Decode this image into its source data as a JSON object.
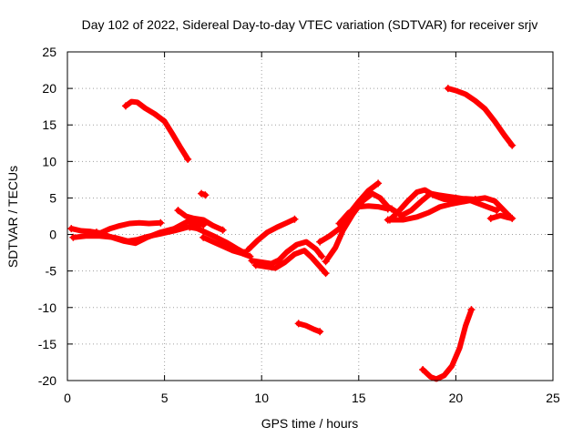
{
  "chart_data": {
    "type": "scatter",
    "title": "Day 102 of 2022, Sidereal Day-to-day VTEC variation (SDTVAR) for receiver srjv",
    "xlabel": "GPS time / hours",
    "ylabel": "SDTVAR / TECUs",
    "xlim": [
      0,
      25
    ],
    "ylim": [
      -20,
      25
    ],
    "xticks": [
      0,
      5,
      10,
      15,
      20,
      25
    ],
    "yticks": [
      -20,
      -15,
      -10,
      -5,
      0,
      5,
      10,
      15,
      20,
      25
    ],
    "grid": true,
    "marker": "+",
    "color": "#ff0000",
    "series": [
      {
        "name": "arc-1",
        "points": [
          [
            3.0,
            17.6
          ],
          [
            3.3,
            18.2
          ],
          [
            3.6,
            18.1
          ],
          [
            4.0,
            17.3
          ],
          [
            4.5,
            16.5
          ],
          [
            5.0,
            15.5
          ],
          [
            5.4,
            13.8
          ],
          [
            5.8,
            12.0
          ],
          [
            6.2,
            10.3
          ]
        ]
      },
      {
        "name": "arc-2",
        "points": [
          [
            19.6,
            20.0
          ],
          [
            20.0,
            19.7
          ],
          [
            20.5,
            19.2
          ],
          [
            21.0,
            18.3
          ],
          [
            21.5,
            17.2
          ],
          [
            22.0,
            15.5
          ],
          [
            22.5,
            13.6
          ],
          [
            22.9,
            12.2
          ]
        ]
      },
      {
        "name": "arc-3",
        "points": [
          [
            18.3,
            -18.5
          ],
          [
            18.7,
            -19.5
          ],
          [
            19.0,
            -19.8
          ],
          [
            19.4,
            -19.3
          ],
          [
            19.8,
            -18.0
          ],
          [
            20.2,
            -15.5
          ],
          [
            20.5,
            -12.5
          ],
          [
            20.8,
            -10.3
          ]
        ]
      },
      {
        "name": "arc-4",
        "points": [
          [
            11.9,
            -12.2
          ],
          [
            12.3,
            -12.5
          ],
          [
            12.7,
            -13.0
          ],
          [
            13.0,
            -13.3
          ]
        ]
      },
      {
        "name": "arc-5",
        "points": [
          [
            6.9,
            5.6
          ],
          [
            7.1,
            5.4
          ]
        ]
      },
      {
        "name": "arc-6",
        "points": [
          [
            0.2,
            0.8
          ],
          [
            0.7,
            0.5
          ],
          [
            1.2,
            0.4
          ],
          [
            1.7,
            0.2
          ],
          [
            2.2,
            0.8
          ],
          [
            2.7,
            1.2
          ],
          [
            3.2,
            1.5
          ],
          [
            3.7,
            1.6
          ],
          [
            4.2,
            1.5
          ],
          [
            4.8,
            1.6
          ]
        ]
      },
      {
        "name": "arc-7",
        "points": [
          [
            0.3,
            -0.4
          ],
          [
            1.0,
            -0.2
          ],
          [
            1.6,
            -0.2
          ],
          [
            2.4,
            -0.4
          ],
          [
            3.1,
            -0.9
          ],
          [
            3.6,
            -0.7
          ],
          [
            4.1,
            -0.3
          ],
          [
            4.8,
            0.1
          ],
          [
            5.5,
            0.5
          ],
          [
            6.2,
            1.0
          ],
          [
            6.8,
            1.4
          ]
        ]
      },
      {
        "name": "arc-8",
        "points": [
          [
            1.5,
            0.3
          ],
          [
            2.2,
            -0.3
          ],
          [
            2.9,
            -0.9
          ],
          [
            3.5,
            -1.2
          ],
          [
            4.1,
            -0.4
          ],
          [
            4.8,
            0.3
          ],
          [
            5.5,
            0.8
          ],
          [
            6.2,
            1.8
          ],
          [
            7.0,
            1.3
          ]
        ]
      },
      {
        "name": "arc-9",
        "points": [
          [
            5.7,
            3.3
          ],
          [
            6.1,
            2.5
          ],
          [
            6.5,
            2.2
          ],
          [
            7.0,
            2.0
          ],
          [
            7.5,
            1.2
          ],
          [
            8.0,
            0.6
          ]
        ]
      },
      {
        "name": "arc-10",
        "points": [
          [
            7.0,
            -0.4
          ],
          [
            7.5,
            -1.0
          ],
          [
            8.0,
            -1.6
          ],
          [
            8.5,
            -2.2
          ],
          [
            9.0,
            -2.6
          ],
          [
            9.4,
            -3.0
          ]
        ]
      },
      {
        "name": "arc-11",
        "points": [
          [
            6.3,
            1.0
          ],
          [
            6.7,
            0.8
          ],
          [
            7.1,
            0.3
          ],
          [
            7.6,
            -0.3
          ],
          [
            8.2,
            -1.1
          ],
          [
            8.7,
            -1.9
          ],
          [
            9.1,
            -2.5
          ]
        ]
      },
      {
        "name": "arc-12",
        "points": [
          [
            9.3,
            -2.1
          ],
          [
            9.8,
            -0.8
          ],
          [
            10.3,
            0.3
          ],
          [
            10.8,
            1.0
          ],
          [
            11.3,
            1.6
          ],
          [
            11.7,
            2.1
          ]
        ]
      },
      {
        "name": "arc-13",
        "points": [
          [
            9.5,
            -3.6
          ],
          [
            10.0,
            -3.8
          ],
          [
            10.5,
            -4.0
          ],
          [
            10.9,
            -3.5
          ],
          [
            11.3,
            -2.4
          ],
          [
            11.8,
            -1.4
          ],
          [
            12.3,
            -1.0
          ],
          [
            12.8,
            -2.0
          ],
          [
            13.1,
            -3.0
          ]
        ]
      },
      {
        "name": "arc-14",
        "points": [
          [
            9.7,
            -4.2
          ],
          [
            10.2,
            -4.4
          ],
          [
            10.7,
            -4.6
          ],
          [
            11.2,
            -3.8
          ],
          [
            11.7,
            -2.7
          ],
          [
            12.2,
            -2.2
          ],
          [
            12.6,
            -3.2
          ],
          [
            13.0,
            -4.4
          ],
          [
            13.3,
            -5.3
          ]
        ]
      },
      {
        "name": "arc-15",
        "points": [
          [
            13.0,
            -1.0
          ],
          [
            13.5,
            -0.2
          ],
          [
            14.0,
            0.8
          ],
          [
            14.5,
            2.8
          ],
          [
            15.0,
            4.5
          ],
          [
            15.5,
            6.0
          ],
          [
            16.0,
            7.0
          ]
        ]
      },
      {
        "name": "arc-16",
        "points": [
          [
            13.3,
            -3.7
          ],
          [
            13.8,
            -1.8
          ],
          [
            14.2,
            0.6
          ],
          [
            14.7,
            2.8
          ],
          [
            15.2,
            4.6
          ],
          [
            15.7,
            5.6
          ],
          [
            16.1,
            5.0
          ],
          [
            16.5,
            3.8
          ],
          [
            17.0,
            3.0
          ]
        ]
      },
      {
        "name": "arc-17",
        "points": [
          [
            14.0,
            1.5
          ],
          [
            14.5,
            3.0
          ],
          [
            15.0,
            3.8
          ],
          [
            15.5,
            3.9
          ],
          [
            16.0,
            3.8
          ],
          [
            16.5,
            3.5
          ]
        ]
      },
      {
        "name": "arc-18",
        "points": [
          [
            16.6,
            2.0
          ],
          [
            17.0,
            3.0
          ],
          [
            17.5,
            4.5
          ],
          [
            18.0,
            5.8
          ],
          [
            18.4,
            6.1
          ],
          [
            18.9,
            5.3
          ],
          [
            19.4,
            4.8
          ],
          [
            20.0,
            4.8
          ],
          [
            20.5,
            4.9
          ],
          [
            21.0,
            4.8
          ]
        ]
      },
      {
        "name": "arc-19",
        "points": [
          [
            16.7,
            3.5
          ],
          [
            17.2,
            2.6
          ],
          [
            17.7,
            3.3
          ],
          [
            18.2,
            4.5
          ],
          [
            18.7,
            5.6
          ],
          [
            19.1,
            5.4
          ],
          [
            19.6,
            5.2
          ],
          [
            20.1,
            5.0
          ],
          [
            20.6,
            4.8
          ],
          [
            21.1,
            4.3
          ],
          [
            21.6,
            3.8
          ],
          [
            22.1,
            3.3
          ]
        ]
      },
      {
        "name": "arc-20",
        "points": [
          [
            16.5,
            2.0
          ],
          [
            17.3,
            2.0
          ],
          [
            18.0,
            2.4
          ],
          [
            18.6,
            3.0
          ],
          [
            19.2,
            3.8
          ],
          [
            19.8,
            4.2
          ],
          [
            20.4,
            4.5
          ],
          [
            21.0,
            4.8
          ],
          [
            21.5,
            5.0
          ],
          [
            22.0,
            4.6
          ],
          [
            22.4,
            3.5
          ],
          [
            22.8,
            2.4
          ]
        ]
      },
      {
        "name": "arc-21",
        "points": [
          [
            21.8,
            2.2
          ],
          [
            22.3,
            2.6
          ],
          [
            22.7,
            2.3
          ],
          [
            22.9,
            2.2
          ]
        ]
      }
    ]
  }
}
